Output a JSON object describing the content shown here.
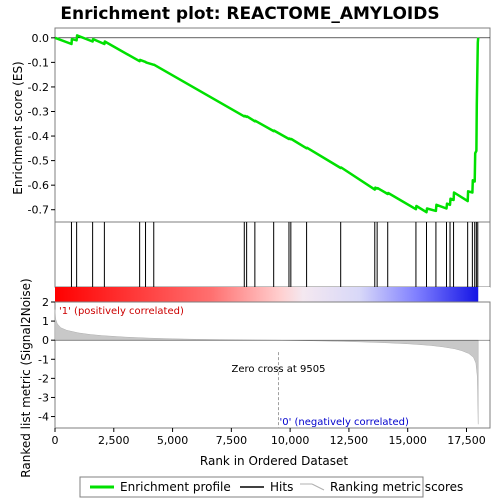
{
  "title": "Enrichment plot: REACTOME_AMYLOIDS",
  "colors": {
    "es_line": "#00e000",
    "hits": "#000000",
    "metric_fill": "#c8c8c8",
    "pos_band": "#ff0000",
    "neg_band": "#0000ff",
    "zero_cross_line": "#a0a0a0",
    "frame": "#7f7f7f"
  },
  "chart_data": [
    {
      "type": "line",
      "name": "es_panel",
      "ylabel": "Enrichment score (ES)",
      "ylim": [
        -0.75,
        0.04
      ],
      "yticks": [
        "0.0",
        "-0.1",
        "-0.2",
        "-0.3",
        "-0.4",
        "-0.5",
        "-0.6",
        "-0.7"
      ],
      "ytick_values": [
        0.0,
        -0.1,
        -0.2,
        -0.3,
        -0.4,
        -0.5,
        -0.6,
        -0.7
      ],
      "xlim": [
        0,
        18500
      ],
      "series": [
        {
          "name": "Enrichment profile",
          "x": [
            0,
            700,
            720,
            920,
            940,
            1600,
            1620,
            2100,
            2120,
            3600,
            3620,
            3850,
            3870,
            4200,
            4220,
            8050,
            8070,
            8150,
            8170,
            8500,
            8520,
            9300,
            9320,
            9950,
            9970,
            10030,
            10050,
            10700,
            10720,
            12150,
            12170,
            13600,
            13620,
            13700,
            13720,
            14150,
            14170,
            15350,
            15370,
            15800,
            15820,
            16200,
            16220,
            16650,
            16670,
            16800,
            16820,
            16950,
            16970,
            17550,
            17570,
            17750,
            17770,
            17850,
            17870,
            17920,
            17940,
            17980,
            18000
          ],
          "y": [
            0.0,
            -0.025,
            -0.005,
            -0.01,
            0.01,
            -0.015,
            -0.005,
            -0.025,
            -0.015,
            -0.095,
            -0.09,
            -0.098,
            -0.1,
            -0.11,
            -0.11,
            -0.32,
            -0.318,
            -0.322,
            -0.32,
            -0.34,
            -0.338,
            -0.38,
            -0.378,
            -0.412,
            -0.41,
            -0.413,
            -0.412,
            -0.45,
            -0.448,
            -0.53,
            -0.528,
            -0.618,
            -0.61,
            -0.614,
            -0.612,
            -0.636,
            -0.632,
            -0.698,
            -0.685,
            -0.71,
            -0.695,
            -0.705,
            -0.68,
            -0.695,
            -0.675,
            -0.68,
            -0.655,
            -0.66,
            -0.63,
            -0.665,
            -0.625,
            -0.63,
            -0.58,
            -0.585,
            -0.47,
            -0.46,
            -0.27,
            -0.02,
            0.0
          ]
        }
      ],
      "hits": [
        700,
        920,
        1600,
        2100,
        3600,
        3850,
        4200,
        8050,
        8150,
        8500,
        9300,
        9950,
        10030,
        10700,
        12150,
        13600,
        13700,
        14150,
        15350,
        15800,
        16200,
        16650,
        16800,
        16950,
        17550,
        17750,
        17850,
        17920,
        17980
      ]
    },
    {
      "type": "area",
      "name": "metric_panel",
      "xlabel": "Rank in Ordered Dataset",
      "ylabel": "Ranked list metric (Signal2Noise)",
      "ylim": [
        -4.6,
        2.0
      ],
      "yticks": [
        "2",
        "1",
        "0",
        "-1",
        "-2",
        "-3",
        "-4"
      ],
      "ytick_values": [
        2,
        1,
        0,
        -1,
        -2,
        -3,
        -4
      ],
      "xlim": [
        0,
        18500
      ],
      "xticks": [
        "0",
        "2,500",
        "5,000",
        "7,500",
        "10,000",
        "12,500",
        "15,000",
        "17,500"
      ],
      "xtick_values": [
        0,
        2500,
        5000,
        7500,
        10000,
        12500,
        15000,
        17500
      ],
      "x": [
        0,
        30,
        100,
        250,
        500,
        1000,
        1500,
        2000,
        3000,
        4000,
        5000,
        6000,
        7000,
        8000,
        9000,
        9505,
        10000,
        11000,
        12000,
        13000,
        14000,
        15000,
        15500,
        16000,
        16500,
        17000,
        17300,
        17600,
        17800,
        17900,
        17960,
        18000
      ],
      "values": [
        1.6,
        1.1,
        0.85,
        0.65,
        0.52,
        0.38,
        0.3,
        0.24,
        0.16,
        0.11,
        0.07,
        0.045,
        0.028,
        0.015,
        0.005,
        0.0,
        -0.01,
        -0.03,
        -0.06,
        -0.09,
        -0.13,
        -0.19,
        -0.23,
        -0.28,
        -0.35,
        -0.45,
        -0.55,
        -0.7,
        -0.9,
        -1.2,
        -1.9,
        -4.4
      ],
      "annotations": {
        "zero_cross": "Zero cross at 9505",
        "zero_cross_x": 9505,
        "positive": "'1' (positively correlated)",
        "negative": "'0' (negatively correlated)"
      }
    }
  ],
  "legend": {
    "items": [
      {
        "label": "Enrichment profile",
        "kind": "line",
        "color": "#00e000"
      },
      {
        "label": "Hits",
        "kind": "line",
        "color": "#000000"
      },
      {
        "label": "Ranking metric scores",
        "kind": "line",
        "color": "#c8c8c8"
      }
    ]
  }
}
